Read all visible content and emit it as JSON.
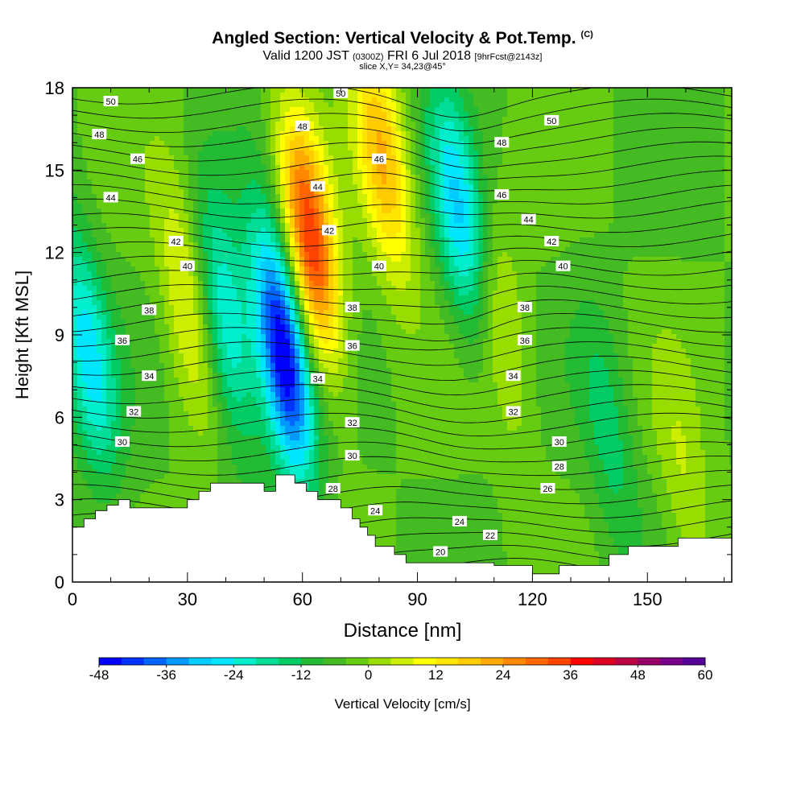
{
  "header": {
    "title": "Angled Section: Vertical Velocity & Pot.Temp.",
    "title_unit": "(C)",
    "valid_prefix": "Valid 1200 JST",
    "valid_utc": "(0300Z)",
    "valid_date": "FRI 6 Jul 2018",
    "forecast": "[9hrFcst@2143z]",
    "slice": "slice X,Y= 34,23@45°"
  },
  "chart_data": {
    "type": "heatmap",
    "description_fields": "filled contours of vertical velocity with overlaid potential temperature isolines",
    "x": {
      "label": "Distance [nm]",
      "range": [
        0,
        172
      ],
      "ticks": [
        0,
        30,
        60,
        90,
        120,
        150
      ]
    },
    "y": {
      "label": "Height [Kft MSL]",
      "range": [
        0,
        18
      ],
      "ticks": [
        0,
        3,
        6,
        9,
        12,
        15,
        18
      ]
    },
    "colorbar": {
      "label": "Vertical Velocity [cm/s]",
      "range": [
        -48,
        60
      ],
      "step": 4,
      "ticks": [
        -48,
        -36,
        -24,
        -12,
        0,
        12,
        24,
        36,
        48,
        60
      ],
      "colors": [
        "#0000ff",
        "#0033ff",
        "#0066ff",
        "#0099ff",
        "#00ccff",
        "#00e6ff",
        "#00eecc",
        "#00dd99",
        "#00cc66",
        "#22bb33",
        "#44bb22",
        "#66cc11",
        "#99dd00",
        "#ccee00",
        "#ffff00",
        "#ffe600",
        "#ffcc00",
        "#ffaa00",
        "#ff8800",
        "#ff6600",
        "#ff4400",
        "#ff0000",
        "#dd0022",
        "#bb0044",
        "#990066",
        "#770088",
        "#550099"
      ]
    },
    "updrafts_downdrafts": [
      {
        "x": 4,
        "y": 8.5,
        "w": -22,
        "note": "downdraft"
      },
      {
        "x": 30,
        "y": 10.5,
        "w": 14,
        "note": "updraft"
      },
      {
        "x": 40,
        "y": 9.5,
        "w": -22,
        "note": "downdraft"
      },
      {
        "x": 55,
        "y": 8.5,
        "w": -46,
        "note": "strong downdraft"
      },
      {
        "x": 62,
        "y": 12.5,
        "w": 40,
        "note": "strong updraft"
      },
      {
        "x": 81,
        "y": 15.5,
        "w": 24,
        "note": "updraft"
      },
      {
        "x": 101,
        "y": 13.5,
        "w": -24,
        "note": "downdraft"
      },
      {
        "x": 112,
        "y": 9.5,
        "w": 10,
        "note": "updraft"
      },
      {
        "x": 140,
        "y": 5.5,
        "w": -10,
        "note": "downdraft"
      },
      {
        "x": 160,
        "y": 3.5,
        "w": 8,
        "note": "updraft"
      }
    ],
    "isotherm_labels": [
      {
        "text": "50",
        "x": 10,
        "y": 17.5
      },
      {
        "text": "48",
        "x": 7,
        "y": 16.3
      },
      {
        "text": "46",
        "x": 17,
        "y": 15.4
      },
      {
        "text": "44",
        "x": 10,
        "y": 14.0
      },
      {
        "text": "42",
        "x": 27,
        "y": 12.4
      },
      {
        "text": "40",
        "x": 30,
        "y": 11.5
      },
      {
        "text": "38",
        "x": 20,
        "y": 9.9
      },
      {
        "text": "36",
        "x": 13,
        "y": 8.8
      },
      {
        "text": "34",
        "x": 20,
        "y": 7.5
      },
      {
        "text": "32",
        "x": 16,
        "y": 6.2
      },
      {
        "text": "30",
        "x": 13,
        "y": 5.1
      },
      {
        "text": "48",
        "x": 60,
        "y": 16.6
      },
      {
        "text": "50",
        "x": 70,
        "y": 17.8
      },
      {
        "text": "44",
        "x": 64,
        "y": 14.4
      },
      {
        "text": "42",
        "x": 67,
        "y": 12.8
      },
      {
        "text": "46",
        "x": 80,
        "y": 15.4
      },
      {
        "text": "40",
        "x": 80,
        "y": 11.5
      },
      {
        "text": "38",
        "x": 73,
        "y": 10.0
      },
      {
        "text": "36",
        "x": 73,
        "y": 8.6
      },
      {
        "text": "34",
        "x": 64,
        "y": 7.4
      },
      {
        "text": "32",
        "x": 73,
        "y": 5.8
      },
      {
        "text": "30",
        "x": 73,
        "y": 4.6
      },
      {
        "text": "28",
        "x": 68,
        "y": 3.4
      },
      {
        "text": "24",
        "x": 79,
        "y": 2.6
      },
      {
        "text": "50",
        "x": 125,
        "y": 16.8
      },
      {
        "text": "48",
        "x": 112,
        "y": 16.0
      },
      {
        "text": "46",
        "x": 112,
        "y": 14.1
      },
      {
        "text": "44",
        "x": 119,
        "y": 13.2
      },
      {
        "text": "42",
        "x": 125,
        "y": 12.4
      },
      {
        "text": "40",
        "x": 128,
        "y": 11.5
      },
      {
        "text": "38",
        "x": 118,
        "y": 10.0
      },
      {
        "text": "36",
        "x": 118,
        "y": 8.8
      },
      {
        "text": "34",
        "x": 115,
        "y": 7.5
      },
      {
        "text": "32",
        "x": 115,
        "y": 6.2
      },
      {
        "text": "30",
        "x": 127,
        "y": 5.1
      },
      {
        "text": "28",
        "x": 127,
        "y": 4.2
      },
      {
        "text": "26",
        "x": 124,
        "y": 3.4
      },
      {
        "text": "24",
        "x": 101,
        "y": 2.2
      },
      {
        "text": "22",
        "x": 109,
        "y": 1.7
      },
      {
        "text": "20",
        "x": 96,
        "y": 1.1
      }
    ],
    "terrain_profile": [
      [
        0,
        2.0
      ],
      [
        3,
        2.0
      ],
      [
        3,
        2.3
      ],
      [
        6,
        2.3
      ],
      [
        6,
        2.6
      ],
      [
        9,
        2.6
      ],
      [
        9,
        2.8
      ],
      [
        12,
        2.8
      ],
      [
        12,
        3.0
      ],
      [
        15,
        3.0
      ],
      [
        15,
        2.7
      ],
      [
        30,
        2.7
      ],
      [
        30,
        3.0
      ],
      [
        33,
        3.0
      ],
      [
        33,
        3.3
      ],
      [
        36,
        3.3
      ],
      [
        36,
        3.6
      ],
      [
        50,
        3.6
      ],
      [
        50,
        3.3
      ],
      [
        53,
        3.3
      ],
      [
        53,
        3.9
      ],
      [
        58,
        3.9
      ],
      [
        58,
        3.6
      ],
      [
        61,
        3.6
      ],
      [
        61,
        3.3
      ],
      [
        64,
        3.3
      ],
      [
        64,
        3.0
      ],
      [
        70,
        3.0
      ],
      [
        70,
        2.7
      ],
      [
        73,
        2.7
      ],
      [
        73,
        2.3
      ],
      [
        75,
        2.3
      ],
      [
        75,
        2.0
      ],
      [
        77,
        2.0
      ],
      [
        77,
        1.7
      ],
      [
        79,
        1.7
      ],
      [
        79,
        1.3
      ],
      [
        84,
        1.3
      ],
      [
        84,
        1.0
      ],
      [
        87,
        1.0
      ],
      [
        87,
        0.7
      ],
      [
        110,
        0.7
      ],
      [
        110,
        0.6
      ],
      [
        120,
        0.6
      ],
      [
        120,
        0.3
      ],
      [
        127,
        0.3
      ],
      [
        127,
        0.6
      ],
      [
        140,
        0.6
      ],
      [
        140,
        1.0
      ],
      [
        145,
        1.0
      ],
      [
        145,
        1.3
      ],
      [
        158,
        1.3
      ],
      [
        158,
        1.6
      ],
      [
        172,
        1.6
      ]
    ]
  }
}
